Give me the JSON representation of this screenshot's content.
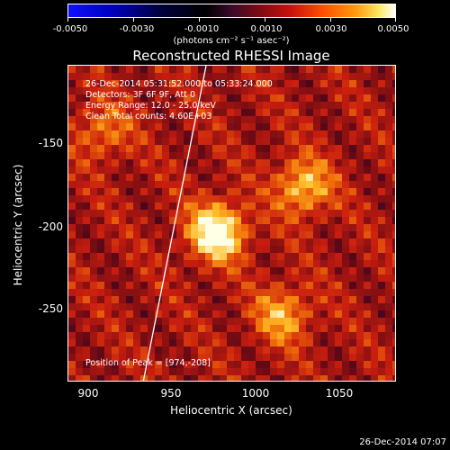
{
  "colorbar": {
    "ticks": [
      "-0.0050",
      "-0.0030",
      "-0.0010",
      "0.0010",
      "0.0030",
      "0.0050"
    ],
    "unit_label": "(photons cm⁻² s⁻¹ asec⁻²)"
  },
  "title": "Reconstructed RHESSI Image",
  "info": {
    "time_range": "26-Dec-2014 05:31:52.000 to 05:33:24.000",
    "detectors": "Detectors: 3F 6F 9F, Att 0",
    "energy": "Energy Range: 12.0 - 25.0 keV",
    "clean": "Clean    Total counts: 4.60E+03",
    "peak": "Position of Peak = [974,-208]"
  },
  "chart_data": {
    "type": "heatmap",
    "title": "Reconstructed RHESSI Image",
    "xlabel": "Heliocentric X (arcsec)",
    "ylabel": "Heliocentric Y (arcsec)",
    "xlim": [
      888,
      1078
    ],
    "ylim": [
      -295,
      -112
    ],
    "xticks": [
      "900",
      "950",
      "1000",
      "1050"
    ],
    "yticks": [
      "-150",
      "-200",
      "-250"
    ],
    "color_range": [
      -0.005,
      0.005
    ],
    "peak": [
      974,
      -208
    ],
    "sources": [
      {
        "x": 974,
        "y": -208,
        "intensity": 1.0
      },
      {
        "x": 1024,
        "y": -182,
        "intensity": 0.65
      },
      {
        "x": 1012,
        "y": -256,
        "intensity": 0.55
      },
      {
        "x": 908,
        "y": -150,
        "intensity": 0.4
      }
    ]
  },
  "timestamp": "26-Dec-2014 07:07"
}
